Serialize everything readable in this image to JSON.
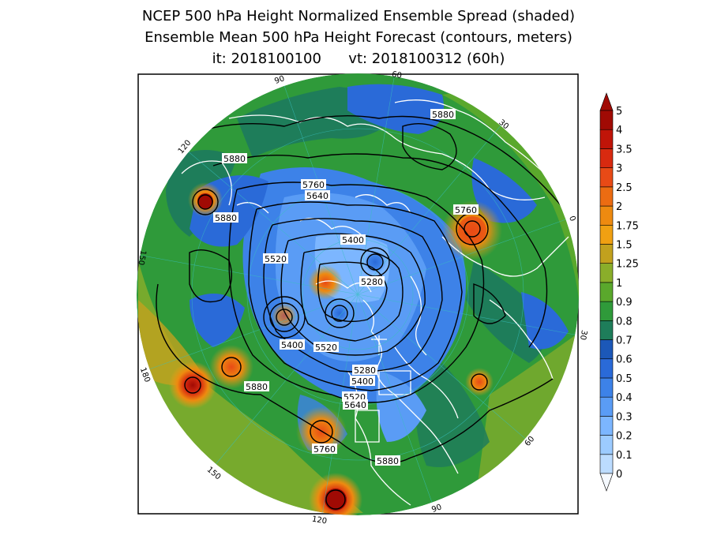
{
  "title": {
    "line1": "NCEP 500 hPa Height Normalized Ensemble Spread (shaded)",
    "line2": "Ensemble Mean 500 hPa Height Forecast (contours, meters)",
    "line3": "it: 2018100100      vt: 2018100312 (60h)"
  },
  "colorbar": {
    "levels": [
      "0",
      "0.1",
      "0.2",
      "0.3",
      "0.4",
      "0.5",
      "0.6",
      "0.7",
      "0.8",
      "0.9",
      "1",
      "1.25",
      "1.5",
      "1.75",
      "2",
      "2.5",
      "3",
      "3.5",
      "4",
      "5"
    ],
    "colors": [
      "#f5f9ff",
      "#bcdcff",
      "#9ccbff",
      "#7cb6ff",
      "#5a9cf5",
      "#3d82e8",
      "#2a6ad8",
      "#1c58b8",
      "#1e7d5a",
      "#2f9a3a",
      "#5aa82c",
      "#8aae2a",
      "#c2a11e",
      "#f0a012",
      "#ee8a10",
      "#ec6c12",
      "#e84a16",
      "#d82a10",
      "#c01408",
      "#a00a04"
    ]
  },
  "contour_labels": [
    {
      "text": "5880",
      "id": "c1"
    },
    {
      "text": "5880",
      "id": "c2"
    },
    {
      "text": "5880",
      "id": "c3"
    },
    {
      "text": "5880",
      "id": "c4"
    },
    {
      "text": "5880",
      "id": "c5"
    },
    {
      "text": "5760",
      "id": "c6"
    },
    {
      "text": "5640",
      "id": "c7"
    },
    {
      "text": "5760",
      "id": "c8"
    },
    {
      "text": "5400",
      "id": "c9"
    },
    {
      "text": "5520",
      "id": "c10"
    },
    {
      "text": "5280",
      "id": "c11"
    },
    {
      "text": "5400",
      "id": "c12"
    },
    {
      "text": "5520",
      "id": "c13"
    },
    {
      "text": "5280",
      "id": "c14"
    },
    {
      "text": "5400",
      "id": "c15"
    },
    {
      "text": "5520",
      "id": "c16"
    },
    {
      "text": "5640",
      "id": "c17"
    },
    {
      "text": "5760",
      "id": "c18"
    }
  ],
  "longitude_labels": [
    "60",
    "30",
    "0",
    "30",
    "60",
    "90",
    "120",
    "150",
    "180",
    "150",
    "120",
    "90"
  ]
}
